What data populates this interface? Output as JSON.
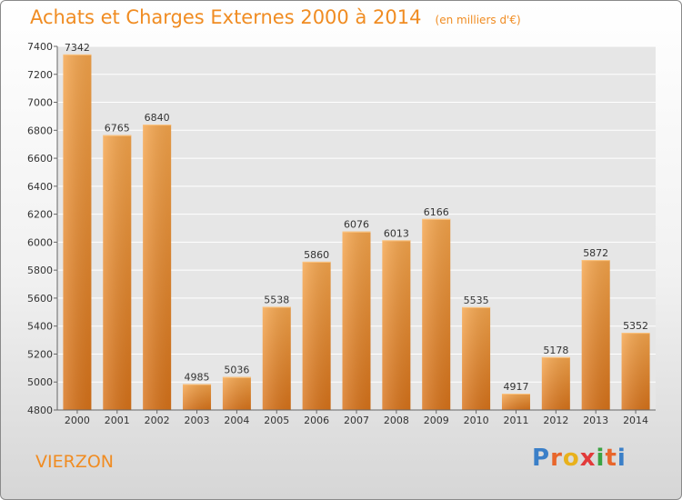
{
  "header": {
    "title": "Achats et Charges Externes 2000 à 2014",
    "subtitle": "(en milliers d'€)"
  },
  "footer": {
    "city": "VIERZON",
    "logo_text": "Proxiti"
  },
  "colors": {
    "bar_top": "#f5a54c",
    "bar_bottom": "#d8731a",
    "title": "#f08c22",
    "grid": "#ffffff",
    "plot_bg": "#e6e6e6"
  },
  "chart_data": {
    "type": "bar",
    "title": "Achats et Charges Externes 2000 à 2014",
    "subtitle": "(en milliers d'€)",
    "xlabel": "",
    "ylabel": "",
    "categories": [
      "2000",
      "2001",
      "2002",
      "2003",
      "2004",
      "2005",
      "2006",
      "2007",
      "2008",
      "2009",
      "2010",
      "2011",
      "2012",
      "2013",
      "2014"
    ],
    "values": [
      7342,
      6765,
      6840,
      4985,
      5036,
      5538,
      5860,
      6076,
      6013,
      6166,
      5535,
      4917,
      5178,
      5872,
      5352
    ],
    "ylim": [
      4800,
      7400
    ],
    "yticks": [
      4800,
      5000,
      5200,
      5400,
      5600,
      5800,
      6000,
      6200,
      6400,
      6600,
      6800,
      7000,
      7200,
      7400
    ],
    "grid": true,
    "data_labels": true
  }
}
